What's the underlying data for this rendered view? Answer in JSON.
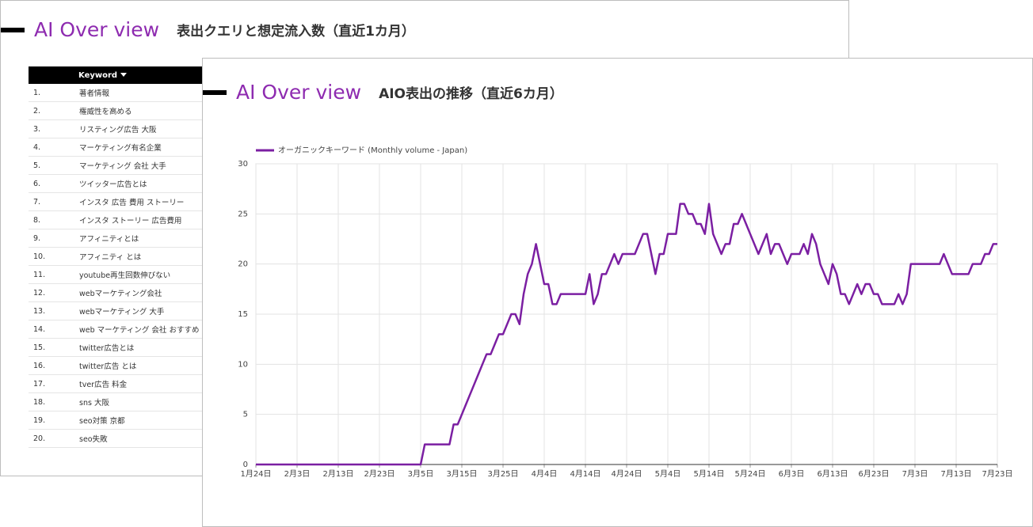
{
  "back_panel": {
    "brand": "AI Over view",
    "subtitle": "表出クエリと想定流入数（直近1カ月）",
    "table": {
      "header": "Keyword",
      "rows": [
        [
          "1.",
          "著者情報"
        ],
        [
          "2.",
          "権威性を高める"
        ],
        [
          "3.",
          "リスティング広告 大阪"
        ],
        [
          "4.",
          "マーケティング有名企業"
        ],
        [
          "5.",
          "マーケティング 会社 大手"
        ],
        [
          "6.",
          "ツイッター広告とは"
        ],
        [
          "7.",
          "インスタ 広告 費用 ストーリー"
        ],
        [
          "8.",
          "インスタ ストーリー 広告費用"
        ],
        [
          "9.",
          "アフィニティとは"
        ],
        [
          "10.",
          "アフィニティ とは"
        ],
        [
          "11.",
          "youtube再生回数伸びない"
        ],
        [
          "12.",
          "webマーケティング会社"
        ],
        [
          "13.",
          "webマーケティング 大手"
        ],
        [
          "14.",
          "web マーケティング 会社 おすすめ"
        ],
        [
          "15.",
          "twitter広告とは"
        ],
        [
          "16.",
          "twitter広告 とは"
        ],
        [
          "17.",
          "tver広告 料金"
        ],
        [
          "18.",
          "sns 大阪"
        ],
        [
          "19.",
          "seo対策 京都"
        ],
        [
          "20.",
          "seo失敗"
        ]
      ]
    }
  },
  "front_panel": {
    "brand": "AI Over view",
    "subtitle": "AIO表出の推移（直近6カ月）"
  },
  "chart_data": {
    "type": "line",
    "categories": [
      "1月24日",
      null,
      null,
      null,
      null,
      null,
      null,
      null,
      null,
      null,
      "2月3日",
      null,
      null,
      null,
      null,
      null,
      null,
      null,
      null,
      null,
      "2月13日",
      null,
      null,
      null,
      null,
      null,
      null,
      null,
      null,
      null,
      "2月23日",
      null,
      null,
      null,
      null,
      null,
      null,
      null,
      null,
      null,
      "3月5日",
      null,
      null,
      null,
      null,
      null,
      null,
      null,
      null,
      null,
      "3月15日",
      null,
      null,
      null,
      null,
      null,
      null,
      null,
      null,
      null,
      "3月25日",
      null,
      null,
      null,
      null,
      null,
      null,
      null,
      null,
      null,
      "4月4日",
      null,
      null,
      null,
      null,
      null,
      null,
      null,
      null,
      null,
      "4月14日",
      null,
      null,
      null,
      null,
      null,
      null,
      null,
      null,
      null,
      "4月24日",
      null,
      null,
      null,
      null,
      null,
      null,
      null,
      null,
      null,
      "5月4日",
      null,
      null,
      null,
      null,
      null,
      null,
      null,
      null,
      null,
      "5月14日",
      null,
      null,
      null,
      null,
      null,
      null,
      null,
      null,
      null,
      "5月24日",
      null,
      null,
      null,
      null,
      null,
      null,
      null,
      null,
      null,
      "6月3日",
      null,
      null,
      null,
      null,
      null,
      null,
      null,
      null,
      null,
      "6月13日",
      null,
      null,
      null,
      null,
      null,
      null,
      null,
      null,
      null,
      "6月23日",
      null,
      null,
      null,
      null,
      null,
      null,
      null,
      null,
      null,
      "7月3日",
      null,
      null,
      null,
      null,
      null,
      null,
      null,
      null,
      null,
      "7月13日",
      null,
      null,
      null,
      null,
      null,
      null,
      null,
      null,
      null,
      "7月23日"
    ],
    "series": [
      {
        "name": "オーガニックキーワード (Monthly volume - Japan)",
        "color": "#7b1fa2",
        "values": [
          0,
          0,
          0,
          0,
          0,
          0,
          0,
          0,
          0,
          0,
          0,
          0,
          0,
          0,
          0,
          0,
          0,
          0,
          0,
          0,
          0,
          0,
          0,
          0,
          0,
          0,
          0,
          0,
          0,
          0,
          0,
          0,
          0,
          0,
          0,
          0,
          0,
          0,
          0,
          0,
          0,
          2,
          2,
          2,
          2,
          2,
          2,
          2,
          4,
          4,
          5,
          6,
          7,
          8,
          9,
          10,
          11,
          11,
          12,
          13,
          13,
          14,
          15,
          15,
          14,
          17,
          19,
          20,
          22,
          20,
          18,
          18,
          16,
          16,
          17,
          17,
          17,
          17,
          17,
          17,
          17,
          19,
          16,
          17,
          19,
          19,
          20,
          21,
          20,
          21,
          21,
          21,
          21,
          22,
          23,
          23,
          21,
          19,
          21,
          21,
          23,
          23,
          23,
          26,
          26,
          25,
          25,
          24,
          24,
          23,
          26,
          23,
          22,
          21,
          22,
          22,
          24,
          24,
          25,
          24,
          23,
          22,
          21,
          22,
          23,
          21,
          22,
          22,
          21,
          20,
          21,
          21,
          21,
          22,
          21,
          23,
          22,
          20,
          19,
          18,
          20,
          19,
          17,
          17,
          16,
          17,
          18,
          17,
          18,
          18,
          17,
          17,
          16,
          16,
          16,
          16,
          17,
          16,
          17,
          20,
          20,
          20,
          20,
          20,
          20,
          20,
          20,
          21,
          20,
          19,
          19,
          19,
          19,
          19,
          20,
          20,
          20,
          21,
          21,
          22,
          22
        ]
      }
    ],
    "ylim": [
      0,
      30
    ],
    "yticks": [
      0,
      5,
      10,
      15,
      20,
      25,
      30
    ],
    "grid": true,
    "legend": "top-left"
  }
}
